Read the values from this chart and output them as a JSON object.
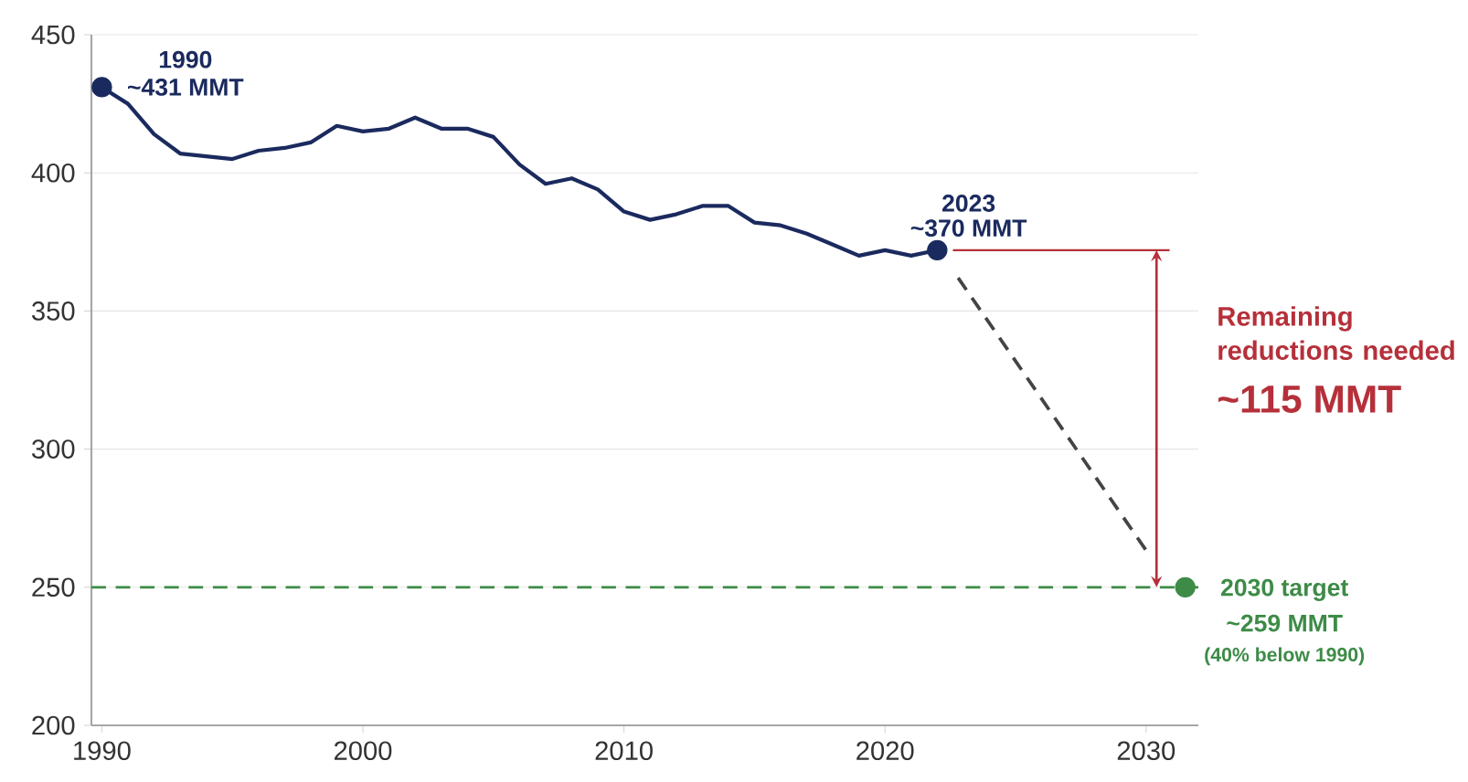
{
  "chart_data": {
    "type": "line",
    "xlim": [
      1989.6,
      2032
    ],
    "xticks": [
      1990,
      2000,
      2010,
      2020,
      2030
    ],
    "ylim": [
      200,
      450
    ],
    "yticks": [
      200,
      250,
      300,
      350,
      400,
      450
    ],
    "grid": "y",
    "series": [
      {
        "color": "#1b2a5e",
        "marker": "none",
        "line_style": "solid",
        "x": [
          1990,
          1991,
          1992,
          1993,
          1994,
          1995,
          1996,
          1997,
          1998,
          1999,
          2000,
          2001,
          2002,
          2003,
          2004,
          2005,
          2006,
          2007,
          2008,
          2009,
          2010,
          2011,
          2012,
          2013,
          2014,
          2015,
          2016,
          2017,
          2018,
          2019,
          2020,
          2021,
          2022
        ],
        "values": [
          431,
          425,
          414,
          407,
          406,
          405,
          408,
          409,
          411,
          417,
          415,
          416,
          420,
          416,
          416,
          413,
          403,
          396,
          398,
          394,
          386,
          383,
          385,
          388,
          388,
          382,
          381,
          378,
          374,
          370,
          372,
          370,
          372
        ]
      },
      {
        "type": "scatter",
        "color": "#1b2a5e",
        "marker": "circle",
        "x": [
          1990,
          2022
        ],
        "values": [
          431,
          372
        ]
      },
      {
        "color": "#444444",
        "marker": "none",
        "line_style": "dashed",
        "x": [
          2022.8,
          2030.1
        ],
        "values": [
          362,
          262
        ]
      },
      {
        "color": "#b5303a",
        "marker": "none",
        "line_style": "solid",
        "x": [
          2022.6,
          2030.9
        ],
        "values": [
          372,
          372
        ]
      },
      {
        "type": "scatter",
        "color": "#3d8b47",
        "marker": "circle",
        "x": [
          2031.5
        ],
        "values": [
          250
        ]
      }
    ],
    "ref_lines": [
      {
        "axis": "y",
        "value": 250,
        "color": "#3d8b47",
        "line_style": "dashed"
      }
    ],
    "annotations": [
      "1990",
      "~431 MMT",
      "2023",
      "~370 MMT",
      "Remaining reductions needed",
      "~115 MMT",
      "2030 target",
      "~259 MMT",
      "(40% below 1990)"
    ]
  }
}
